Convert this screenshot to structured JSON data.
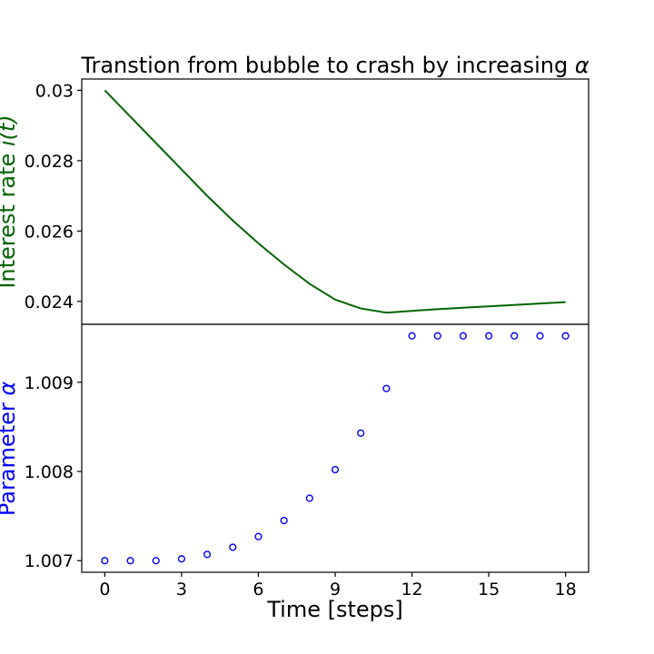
{
  "chart_data": [
    {
      "type": "line",
      "title": "Transtion from bubble to crash by increasing α",
      "ylabel": "Interest rate i(t)",
      "ylabel_color": "#006400",
      "series": [
        {
          "color": "#006400",
          "x": [
            0,
            1,
            2,
            3,
            4,
            5,
            6,
            7,
            8,
            9,
            10,
            11,
            12,
            13,
            14,
            15,
            16,
            17,
            18
          ],
          "values": [
            0.03,
            0.02925,
            0.0285,
            0.02775,
            0.027,
            0.0263,
            0.02565,
            0.02505,
            0.0245,
            0.02405,
            0.0238,
            0.02368,
            0.02373,
            0.02378,
            0.02382,
            0.02386,
            0.0239,
            0.02394,
            0.02398
          ]
        }
      ],
      "yticks": [
        0.024,
        0.026,
        0.028,
        0.03
      ],
      "ytick_labels": [
        "0.024",
        "0.026",
        "0.028",
        "0.03"
      ],
      "xlim": [
        -0.9,
        18.9
      ],
      "ylim": [
        0.02335,
        0.03032
      ],
      "grid": false
    },
    {
      "type": "scatter",
      "ylabel": "Parameter α",
      "ylabel_color": "#0000ff",
      "xlabel": "Time [steps]",
      "series": [
        {
          "color": "#0000ff",
          "marker": "hollow-circle",
          "x": [
            0,
            1,
            2,
            3,
            4,
            5,
            6,
            7,
            8,
            9,
            10,
            11,
            12,
            13,
            14,
            15,
            16,
            17,
            18
          ],
          "values": [
            1.007,
            1.007,
            1.007,
            1.00702,
            1.00707,
            1.00715,
            1.00727,
            1.00745,
            1.0077,
            1.00802,
            1.00843,
            1.00893,
            1.00952,
            1.00952,
            1.00952,
            1.00952,
            1.00952,
            1.00952,
            1.00952
          ]
        }
      ],
      "xticks": [
        0,
        3,
        6,
        9,
        12,
        15,
        18
      ],
      "xtick_labels": [
        "0",
        "3",
        "6",
        "9",
        "12",
        "15",
        "18"
      ],
      "yticks": [
        1.007,
        1.008,
        1.009
      ],
      "ytick_labels": [
        "1.007",
        "1.008",
        "1.009"
      ],
      "xlim": [
        -0.9,
        18.9
      ],
      "ylim": [
        1.00687,
        1.00965
      ],
      "grid": false
    }
  ]
}
